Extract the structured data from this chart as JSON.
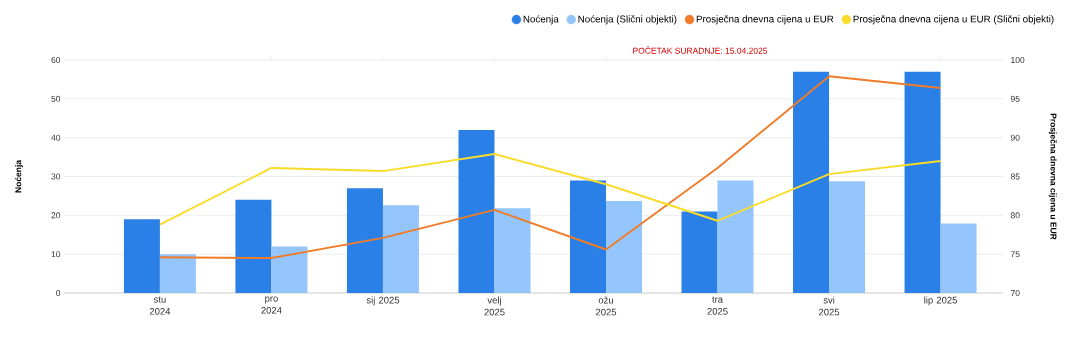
{
  "chart_data": {
    "type": "bar",
    "categories": [
      "stu 2024",
      "pro 2024",
      "sij 2025",
      "velj 2025",
      "ožu 2025",
      "tra 2025",
      "svi 2025",
      "lip 2025"
    ],
    "series": [
      {
        "name": "Noćenja",
        "type": "bar",
        "color": "#2a80e6",
        "values": [
          19,
          24,
          27,
          42,
          29,
          21,
          57,
          57
        ]
      },
      {
        "name": "Noćenja (Slični objekti)",
        "type": "bar",
        "color": "#94c5fc",
        "values": [
          10,
          12,
          22.6,
          21.8,
          23.7,
          29,
          28.8,
          17.9
        ]
      },
      {
        "name": "Prosječna dnevna cijena u EUR",
        "type": "line",
        "axis": "y2",
        "color": "#f07c2a",
        "values": [
          74.6,
          74.5,
          77.1,
          80.7,
          75.6,
          86.1,
          97.9,
          96.4
        ]
      },
      {
        "name": "Prosječna dnevna cijena u EUR (Slični objekti)",
        "type": "line",
        "axis": "y2",
        "color": "#f9dc2a",
        "values": [
          78.8,
          86.1,
          85.7,
          87.9,
          84.0,
          79.3,
          85.3,
          87.0
        ]
      }
    ],
    "ylabel": "Noćenja",
    "y2label": "Prosječna dnevna cijena u EUR",
    "ylim": [
      0,
      60
    ],
    "yticks": [
      0,
      10,
      20,
      30,
      40,
      50,
      60
    ],
    "y2lim": [
      70,
      100
    ],
    "y2ticks": [
      70,
      75,
      80,
      85,
      90,
      95,
      100
    ],
    "grid": "y",
    "legend": "top right",
    "annotations": [
      "POČETAK SURADNJE: 15.04.2025"
    ]
  }
}
